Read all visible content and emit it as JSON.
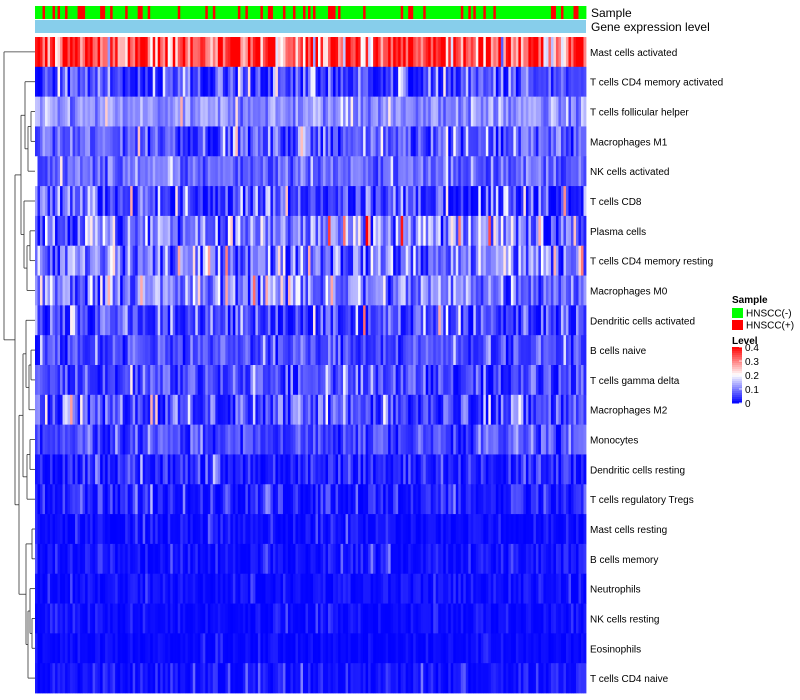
{
  "chart_data": {
    "type": "heatmap",
    "title": "",
    "annotation_tracks": [
      "Sample",
      "Gene expression level"
    ],
    "rows": [
      {
        "label": "Mast cells activated",
        "mean": 0.33,
        "spread": 0.09
      },
      {
        "label": "T cells CD4 memory activated",
        "mean": 0.05,
        "spread": 0.05
      },
      {
        "label": "T cells follicular helper",
        "mean": 0.11,
        "spread": 0.03
      },
      {
        "label": "Macrophages M1",
        "mean": 0.07,
        "spread": 0.04
      },
      {
        "label": "NK cells activated",
        "mean": 0.08,
        "spread": 0.03
      },
      {
        "label": "T cells CD8",
        "mean": 0.05,
        "spread": 0.06
      },
      {
        "label": "Plasma cells",
        "mean": 0.1,
        "spread": 0.07
      },
      {
        "label": "T cells CD4 memory resting",
        "mean": 0.09,
        "spread": 0.06
      },
      {
        "label": "Macrophages M0",
        "mean": 0.1,
        "spread": 0.06
      },
      {
        "label": "Dendritic cells activated",
        "mean": 0.05,
        "spread": 0.05
      },
      {
        "label": "B cells naive",
        "mean": 0.06,
        "spread": 0.03
      },
      {
        "label": "T cells gamma delta",
        "mean": 0.05,
        "spread": 0.04
      },
      {
        "label": "Macrophages M2",
        "mean": 0.06,
        "spread": 0.05
      },
      {
        "label": "Monocytes",
        "mean": 0.05,
        "spread": 0.03
      },
      {
        "label": "Dendritic cells resting",
        "mean": 0.03,
        "spread": 0.03
      },
      {
        "label": "T cells regulatory  Tregs",
        "mean": 0.02,
        "spread": 0.03
      },
      {
        "label": "Mast cells resting",
        "mean": 0.005,
        "spread": 0.02
      },
      {
        "label": "B cells memory",
        "mean": 0.01,
        "spread": 0.02
      },
      {
        "label": "Neutrophils",
        "mean": 0.01,
        "spread": 0.015
      },
      {
        "label": "NK cells resting",
        "mean": 0.005,
        "spread": 0.015
      },
      {
        "label": "Eosinophils",
        "mean": 0.003,
        "spread": 0.01
      },
      {
        "label": "T cells CD4 naive",
        "mean": 0.01,
        "spread": 0.02
      }
    ],
    "n_samples": 220,
    "sample_groups": [
      {
        "label": "HNSCC(-)",
        "color": "#00ff00",
        "fraction": 0.78
      },
      {
        "label": "HNSCC(+)",
        "color": "#ff0000",
        "fraction": 0.22
      }
    ],
    "gene_expression_track_color": "#87ceeb",
    "color_scale": {
      "low": "#0000ff",
      "mid": "#ffffff",
      "high": "#ff0000",
      "min": 0,
      "mid_value": 0.2,
      "max": 0.4,
      "ticks": [
        "0.4",
        "0.3",
        "0.2",
        "0.1",
        "0"
      ]
    },
    "legend": {
      "sample_title": "Sample",
      "level_title": "Level",
      "position": "right"
    }
  }
}
